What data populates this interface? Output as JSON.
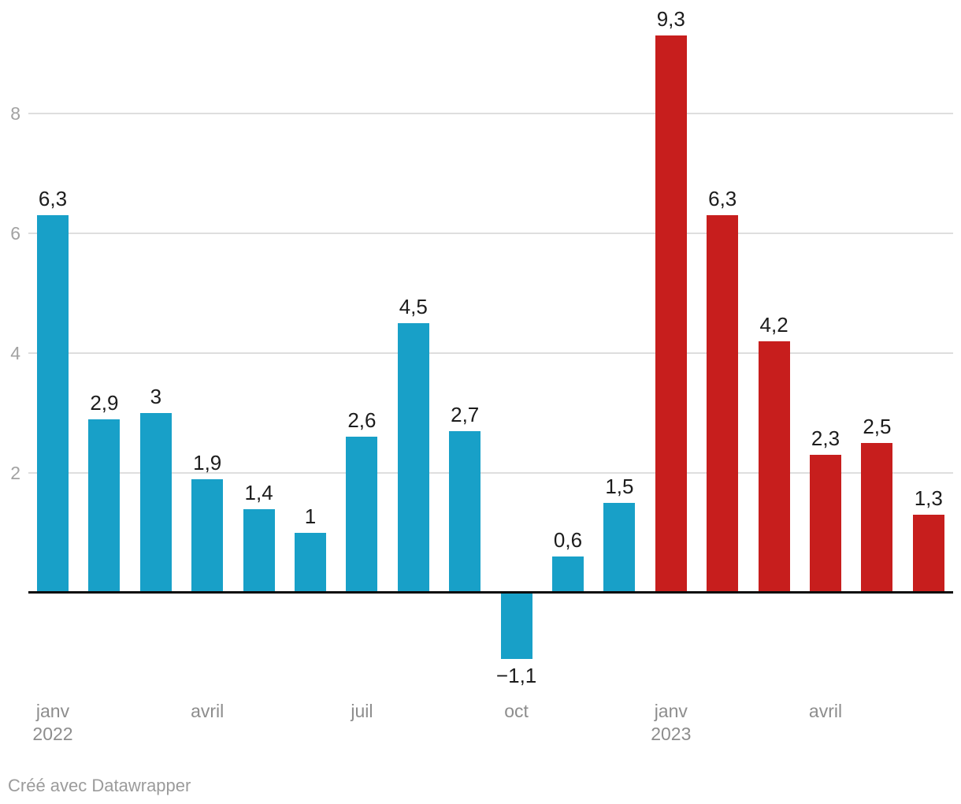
{
  "chart_data": {
    "type": "bar",
    "title": "",
    "legend": "none",
    "grid": "horizontal",
    "y_axis": {
      "ticks": [
        2,
        4,
        6,
        8
      ],
      "range": [
        -1.5,
        9.9
      ]
    },
    "x_axis": {
      "ticks": [
        {
          "bar_index": 0,
          "line1": "janv",
          "line2": "2022"
        },
        {
          "bar_index": 3,
          "line1": "avril"
        },
        {
          "bar_index": 6,
          "line1": "juil"
        },
        {
          "bar_index": 9,
          "line1": "oct"
        },
        {
          "bar_index": 12,
          "line1": "janv",
          "line2": "2023"
        },
        {
          "bar_index": 15,
          "line1": "avril"
        }
      ]
    },
    "series": [
      {
        "name": "2022",
        "color": "#18a0c8",
        "points": [
          {
            "v": 6.3,
            "label": "6,3"
          },
          {
            "v": 2.9,
            "label": "2,9"
          },
          {
            "v": 3,
            "label": "3"
          },
          {
            "v": 1.9,
            "label": "1,9"
          },
          {
            "v": 1.4,
            "label": "1,4"
          },
          {
            "v": 1,
            "label": "1"
          },
          {
            "v": 2.6,
            "label": "2,6"
          },
          {
            "v": 4.5,
            "label": "4,5"
          },
          {
            "v": 2.7,
            "label": "2,7"
          },
          {
            "v": -1.1,
            "label": "−1,1"
          },
          {
            "v": 0.6,
            "label": "0,6"
          },
          {
            "v": 1.5,
            "label": "1,5"
          }
        ]
      },
      {
        "name": "2023",
        "color": "#c71e1d",
        "points": [
          {
            "v": 9.3,
            "label": "9,3"
          },
          {
            "v": 6.3,
            "label": "6,3"
          },
          {
            "v": 4.2,
            "label": "4,2"
          },
          {
            "v": 2.3,
            "label": "2,3"
          },
          {
            "v": 2.5,
            "label": "2,5"
          },
          {
            "v": 1.3,
            "label": "1,3"
          }
        ]
      }
    ]
  },
  "footer": {
    "attribution": "Créé avec Datawrapper"
  }
}
